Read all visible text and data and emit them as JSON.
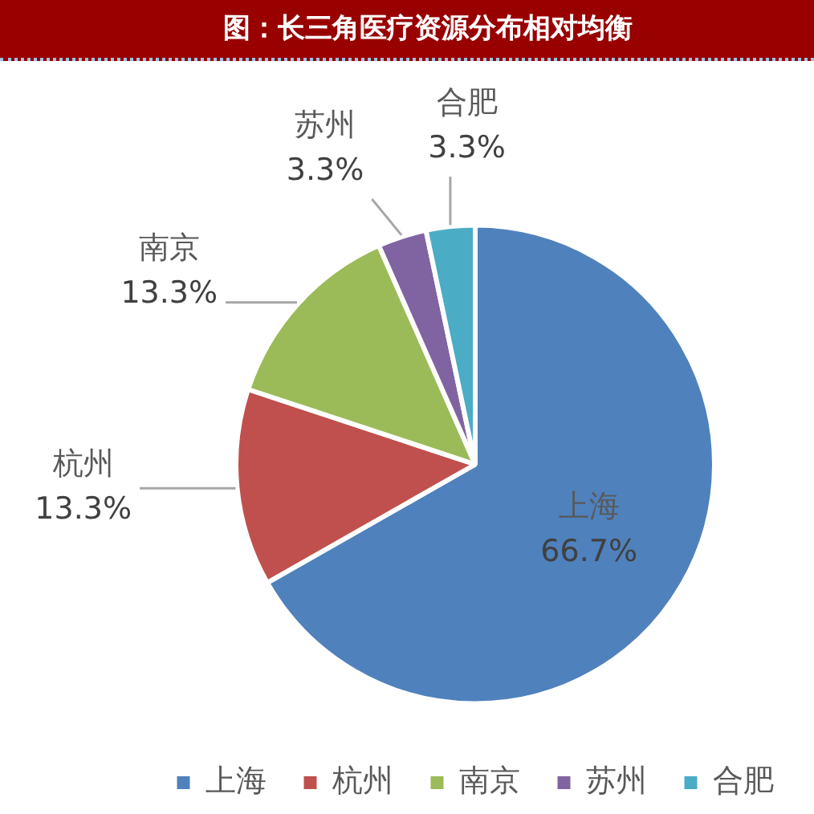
{
  "chart_data": {
    "type": "pie",
    "title": "图：长三角医疗资源分布相对均衡",
    "categories": [
      "上海",
      "杭州",
      "南京",
      "苏州",
      "合肥"
    ],
    "values": [
      66.7,
      13.3,
      13.3,
      3.3,
      3.3
    ],
    "colors": [
      "#4f81bd",
      "#c0504d",
      "#9bbb59",
      "#8064a2",
      "#4bacc6"
    ],
    "value_labels": [
      "66.7%",
      "13.3%",
      "13.3%",
      "3.3%",
      "3.3%"
    ],
    "legend": "bottom"
  }
}
